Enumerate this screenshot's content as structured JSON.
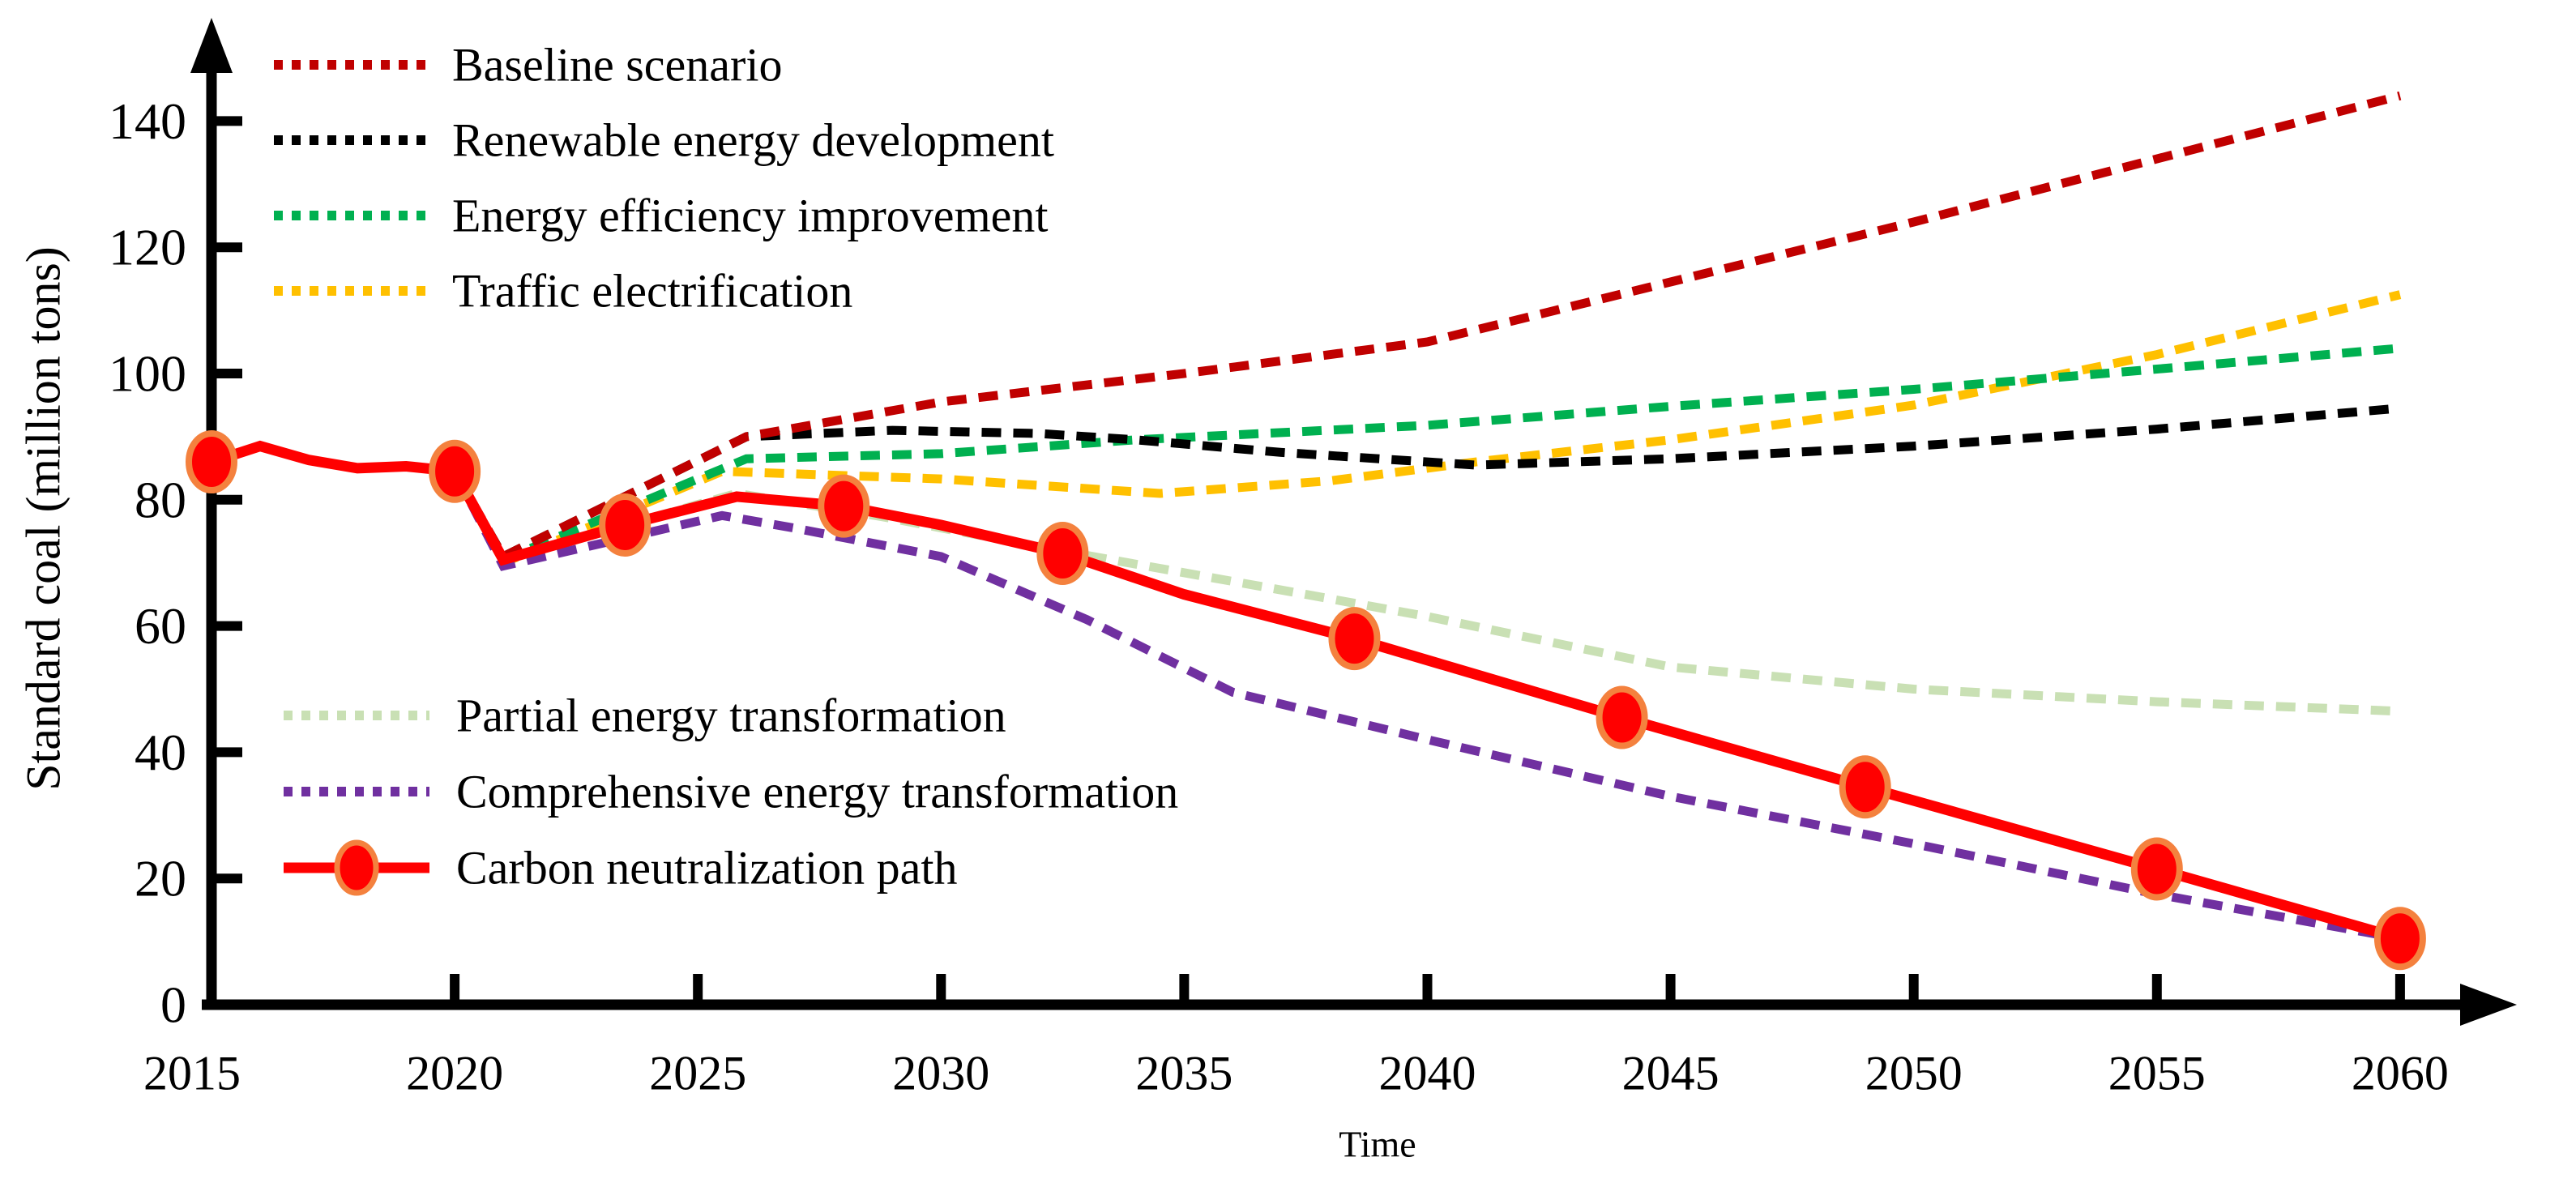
{
  "chart_data": {
    "type": "line",
    "title": "",
    "xlabel": "Time",
    "ylabel": "Standard coal (million tons)",
    "xlim": [
      2015,
      2060
    ],
    "ylim": [
      0,
      150
    ],
    "x_ticks": [
      2015,
      2020,
      2025,
      2030,
      2035,
      2040,
      2045,
      2050,
      2055,
      2060
    ],
    "y_ticks": [
      0,
      20,
      40,
      60,
      80,
      100,
      120,
      140
    ],
    "grid": false,
    "legend_layout": "two stacked groups inside plot area: upper-left and middle-left",
    "marker_style": {
      "fill": "#FF0000",
      "stroke": "#F4813E"
    },
    "series": [
      {
        "id": "partial",
        "name": "Partial energy transformation",
        "color": "#C9E0B4",
        "line_style": "dashed",
        "legend_group": "bottom",
        "legend_row": 0,
        "points": [
          [
            2015,
            86
          ],
          [
            2016,
            88.5
          ],
          [
            2017,
            86.3
          ],
          [
            2018,
            85
          ],
          [
            2019,
            85.3
          ],
          [
            2020,
            84.5
          ],
          [
            2021,
            70.5
          ],
          [
            2025.8,
            81
          ],
          [
            2028.8,
            77.3
          ],
          [
            2032.4,
            72
          ],
          [
            2037.5,
            65
          ],
          [
            2040,
            61.5
          ],
          [
            2045,
            53.5
          ],
          [
            2050,
            50
          ],
          [
            2055,
            48
          ],
          [
            2060,
            46.5
          ]
        ]
      },
      {
        "id": "traffic",
        "name": "Traffic electrification",
        "color": "#FFC000",
        "line_style": "dashed",
        "legend_group": "top",
        "legend_row": 3,
        "points": [
          [
            2015,
            86
          ],
          [
            2016,
            88.5
          ],
          [
            2017,
            86.3
          ],
          [
            2018,
            85
          ],
          [
            2019,
            85.3
          ],
          [
            2020,
            84.5
          ],
          [
            2021,
            70
          ],
          [
            2025.5,
            84.5
          ],
          [
            2030,
            83.3
          ],
          [
            2034.5,
            81
          ],
          [
            2038,
            83
          ],
          [
            2041,
            86
          ],
          [
            2045,
            89.5
          ],
          [
            2050,
            95
          ],
          [
            2055,
            103
          ],
          [
            2060,
            112.5
          ]
        ]
      },
      {
        "id": "efficiency",
        "name": "Energy efficiency improvement",
        "color": "#00B050",
        "line_style": "dashed",
        "legend_group": "top",
        "legend_row": 2,
        "points": [
          [
            2015,
            86
          ],
          [
            2016,
            88.5
          ],
          [
            2017,
            86.3
          ],
          [
            2018,
            85
          ],
          [
            2019,
            85.3
          ],
          [
            2020,
            84.5
          ],
          [
            2021,
            70.5
          ],
          [
            2026,
            86.5
          ],
          [
            2030,
            87.3
          ],
          [
            2034,
            89.5
          ],
          [
            2040,
            91.8
          ],
          [
            2045,
            94.8
          ],
          [
            2050,
            97.5
          ],
          [
            2055,
            100.7
          ],
          [
            2060,
            104
          ]
        ]
      },
      {
        "id": "renewable",
        "name": "Renewable energy development",
        "color": "#000000",
        "line_style": "dashed",
        "legend_group": "top",
        "legend_row": 1,
        "points": [
          [
            2015,
            86
          ],
          [
            2016,
            88.5
          ],
          [
            2017,
            86.3
          ],
          [
            2018,
            85
          ],
          [
            2019,
            85.3
          ],
          [
            2020,
            84.5
          ],
          [
            2021,
            71
          ],
          [
            2026,
            90
          ],
          [
            2029,
            91
          ],
          [
            2032,
            90.5
          ],
          [
            2034,
            89.5
          ],
          [
            2037,
            87.5
          ],
          [
            2041,
            85.5
          ],
          [
            2045,
            86.5
          ],
          [
            2050,
            88.5
          ],
          [
            2055,
            91.2
          ],
          [
            2060,
            94.5
          ]
        ]
      },
      {
        "id": "baseline",
        "name": "Baseline scenario",
        "color": "#C00000",
        "line_style": "dashed",
        "legend_group": "top",
        "legend_row": 0,
        "points": [
          [
            2015,
            86
          ],
          [
            2016,
            88.5
          ],
          [
            2017,
            86.3
          ],
          [
            2018,
            85
          ],
          [
            2019,
            85.3
          ],
          [
            2020,
            84.5
          ],
          [
            2021,
            71
          ],
          [
            2026,
            90
          ],
          [
            2030,
            95.5
          ],
          [
            2035,
            100
          ],
          [
            2040,
            105
          ],
          [
            2045,
            114.5
          ],
          [
            2050,
            124
          ],
          [
            2055,
            134
          ],
          [
            2060,
            144
          ]
        ]
      },
      {
        "id": "comprehensive",
        "name": "Comprehensive energy transformation",
        "color": "#7030A0",
        "line_style": "dashed",
        "legend_group": "bottom",
        "legend_row": 1,
        "points": [
          [
            2015,
            86
          ],
          [
            2016,
            88.5
          ],
          [
            2017,
            86.3
          ],
          [
            2018,
            85
          ],
          [
            2019,
            85.3
          ],
          [
            2020,
            84.5
          ],
          [
            2021,
            69.5
          ],
          [
            2025.5,
            77.5
          ],
          [
            2027,
            75.5
          ],
          [
            2030,
            71
          ],
          [
            2033,
            61
          ],
          [
            2036,
            49.5
          ],
          [
            2040,
            42
          ],
          [
            2045,
            33
          ],
          [
            2050,
            25.5
          ],
          [
            2055,
            17.5
          ],
          [
            2060,
            10.5
          ]
        ]
      },
      {
        "id": "carbon",
        "name": "Carbon neutralization path",
        "color": "#FF0000",
        "line_style": "solid",
        "legend_group": "bottom",
        "legend_row": 2,
        "points": [
          [
            2015,
            86
          ],
          [
            2016,
            88.5
          ],
          [
            2017,
            86.3
          ],
          [
            2018,
            85
          ],
          [
            2019,
            85.3
          ],
          [
            2020,
            84.5
          ],
          [
            2021,
            70.5
          ],
          [
            2023.5,
            76
          ],
          [
            2025.8,
            80.5
          ],
          [
            2028,
            79
          ],
          [
            2030,
            76
          ],
          [
            2032.5,
            71.5
          ],
          [
            2035,
            65
          ],
          [
            2038.5,
            58
          ],
          [
            2044,
            45.5
          ],
          [
            2049,
            34.5
          ],
          [
            2055,
            21.5
          ],
          [
            2060,
            10.5
          ]
        ],
        "marker_points": [
          [
            2015,
            86
          ],
          [
            2020,
            84.5
          ],
          [
            2023.5,
            76
          ],
          [
            2028,
            79
          ],
          [
            2032.5,
            71.5
          ],
          [
            2038.5,
            58
          ],
          [
            2044,
            45.5
          ],
          [
            2049,
            34.5
          ],
          [
            2055,
            21.5
          ],
          [
            2060,
            10.5
          ]
        ]
      }
    ]
  },
  "colors": {
    "axis": "#000000",
    "background": "#FFFFFF"
  }
}
